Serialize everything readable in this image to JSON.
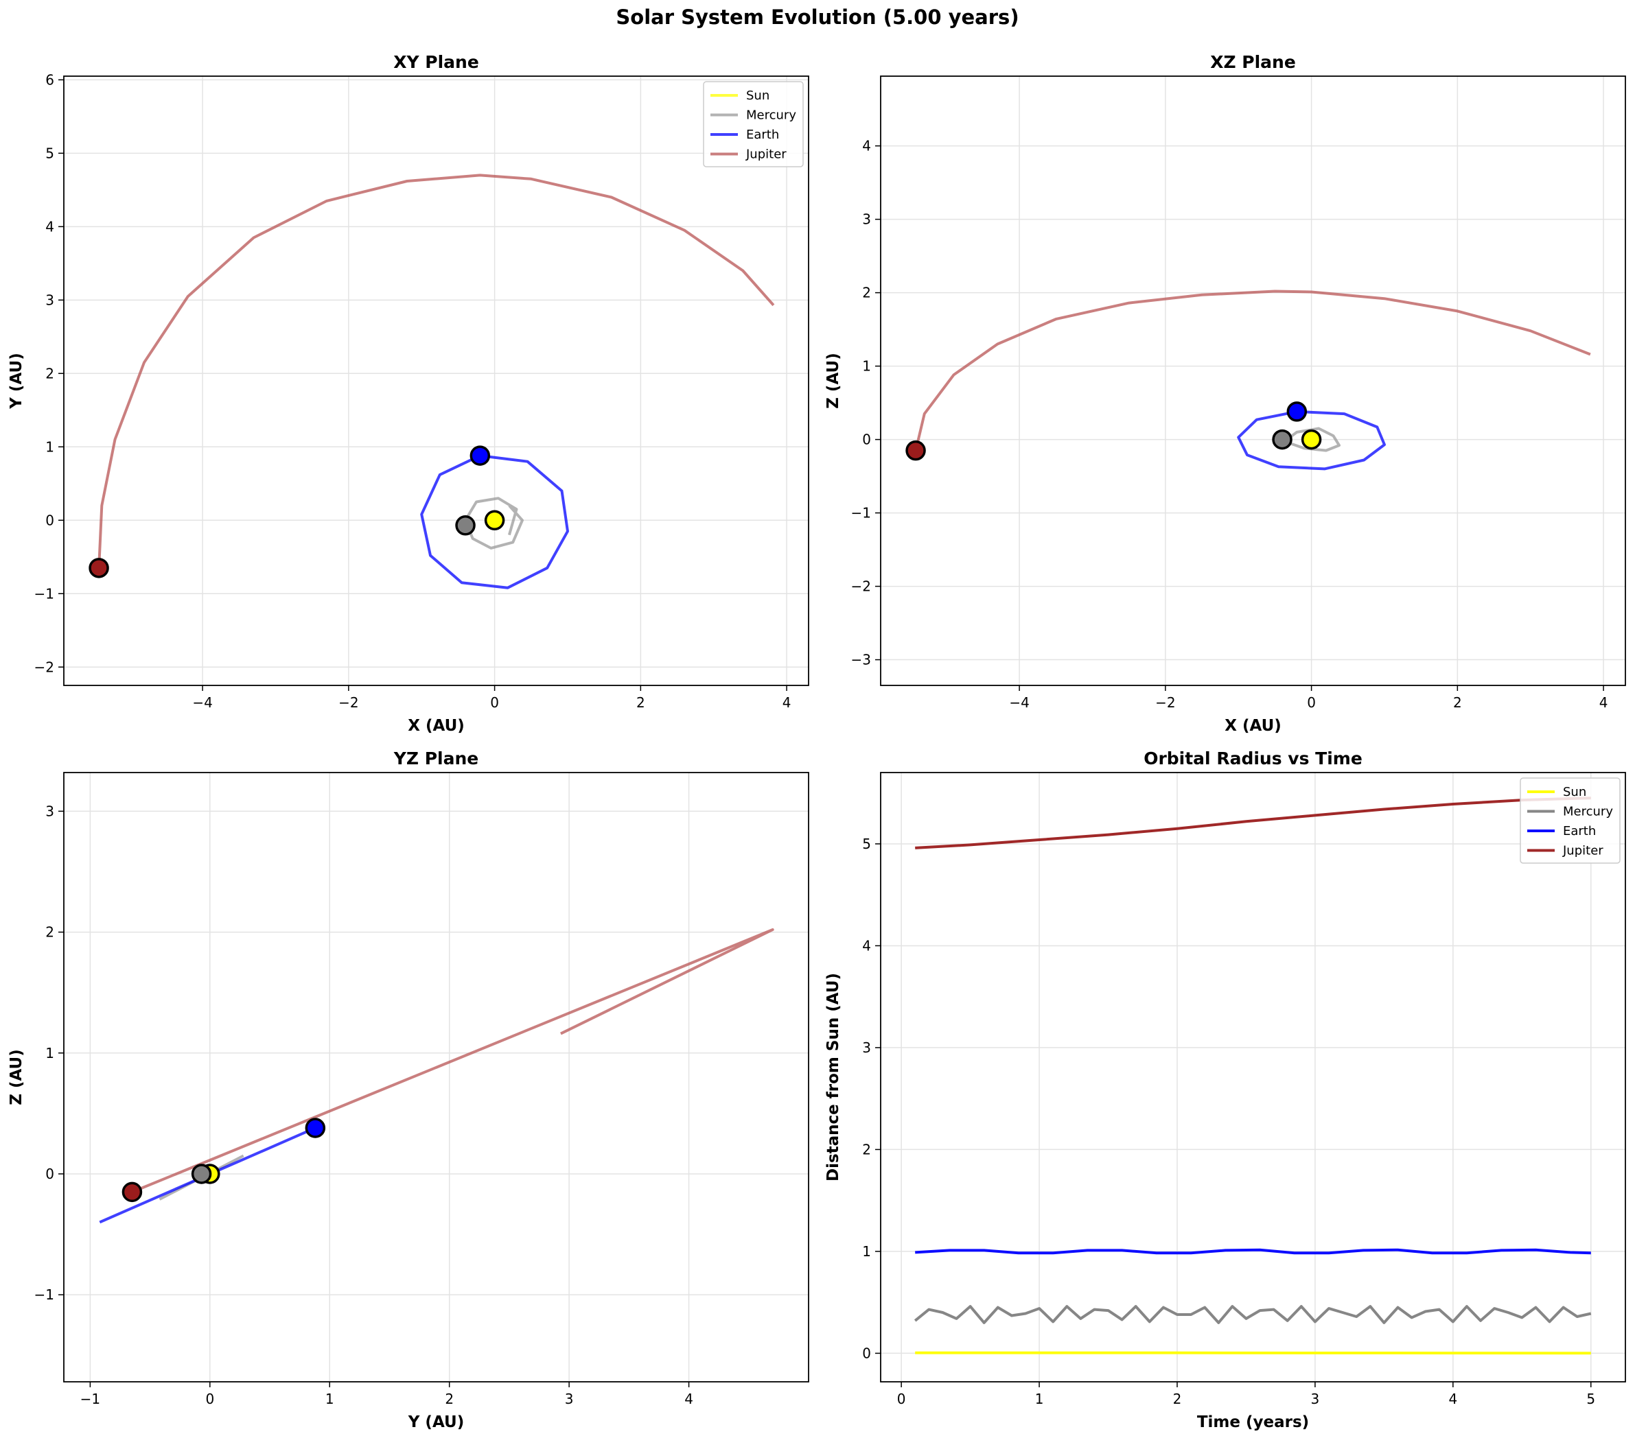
{
  "figure": {
    "title": "Solar System Evolution (5.00 years)"
  },
  "colors": {
    "sun": "#ffff00",
    "mercury": "#808080",
    "earth": "#0000ff",
    "jupiter": "#9b1c1c"
  },
  "chart_data": [
    {
      "id": "xy",
      "type": "line",
      "title": "XY Plane",
      "xlabel": "X (AU)",
      "ylabel": "Y (AU)",
      "xlim": [
        -5.9,
        4.3
      ],
      "ylim": [
        -2.25,
        6.05
      ],
      "xticks": [
        -4,
        -2,
        0,
        2,
        4
      ],
      "yticks": [
        -2,
        -1,
        0,
        1,
        2,
        3,
        4,
        5,
        6
      ],
      "grid": true,
      "legend": "top-right",
      "legend_entries": [
        "Sun",
        "Mercury",
        "Earth",
        "Jupiter"
      ],
      "series": [
        {
          "name": "Sun",
          "color": "#ffff00",
          "x": [
            0.0,
            0.0
          ],
          "y": [
            0.0,
            0.0
          ]
        },
        {
          "name": "Mercury",
          "color": "#999999",
          "x": [
            0.2,
            0.3,
            0.05,
            -0.25,
            -0.4,
            -0.3,
            -0.05,
            0.25,
            0.38,
            0.2
          ],
          "y": [
            -0.2,
            0.15,
            0.3,
            0.25,
            0.0,
            -0.25,
            -0.38,
            -0.3,
            0.0,
            0.2
          ]
        },
        {
          "name": "Earth",
          "color": "#0000ff",
          "x": [
            -0.2,
            0.45,
            0.92,
            1.0,
            0.72,
            0.18,
            -0.45,
            -0.88,
            -1.0,
            -0.75,
            -0.2
          ],
          "y": [
            0.88,
            0.8,
            0.4,
            -0.15,
            -0.65,
            -0.92,
            -0.85,
            -0.48,
            0.08,
            0.62,
            0.88
          ]
        },
        {
          "name": "Jupiter",
          "color": "#b85454",
          "x": [
            3.82,
            3.4,
            2.6,
            1.6,
            0.5,
            -0.2,
            -1.2,
            -2.3,
            -3.3,
            -4.2,
            -4.8,
            -5.2,
            -5.38,
            -5.42
          ],
          "y": [
            2.93,
            3.4,
            3.95,
            4.4,
            4.65,
            4.7,
            4.62,
            4.35,
            3.85,
            3.05,
            2.15,
            1.1,
            0.2,
            -0.65
          ]
        }
      ],
      "markers": [
        {
          "name": "Sun",
          "x": 0.0,
          "y": 0.0,
          "color": "#ffff00"
        },
        {
          "name": "Mercury",
          "x": -0.4,
          "y": -0.07,
          "color": "#808080"
        },
        {
          "name": "Earth",
          "x": -0.2,
          "y": 0.88,
          "color": "#0000ff"
        },
        {
          "name": "Jupiter",
          "x": -5.42,
          "y": -0.65,
          "color": "#9b1c1c"
        }
      ]
    },
    {
      "id": "xz",
      "type": "line",
      "title": "XZ Plane",
      "xlabel": "X (AU)",
      "ylabel": "Z (AU)",
      "xlim": [
        -5.9,
        4.3
      ],
      "ylim": [
        -3.35,
        4.95
      ],
      "xticks": [
        -4,
        -2,
        0,
        2,
        4
      ],
      "yticks": [
        -3,
        -2,
        -1,
        0,
        1,
        2,
        3,
        4
      ],
      "grid": true,
      "series": [
        {
          "name": "Sun",
          "color": "#ffff00",
          "x": [
            0.0,
            0.0
          ],
          "y": [
            0.0,
            0.0
          ]
        },
        {
          "name": "Mercury",
          "color": "#999999",
          "x": [
            -0.4,
            -0.2,
            0.1,
            0.3,
            0.38,
            0.2,
            -0.1,
            -0.3,
            -0.4
          ],
          "y": [
            -0.05,
            0.1,
            0.15,
            0.05,
            -0.08,
            -0.15,
            -0.12,
            -0.05,
            -0.05
          ]
        },
        {
          "name": "Earth",
          "color": "#0000ff",
          "x": [
            -0.2,
            0.45,
            0.9,
            1.0,
            0.72,
            0.18,
            -0.45,
            -0.88,
            -1.0,
            -0.75,
            -0.2
          ],
          "y": [
            0.38,
            0.35,
            0.17,
            -0.07,
            -0.28,
            -0.4,
            -0.37,
            -0.21,
            0.03,
            0.27,
            0.38
          ]
        },
        {
          "name": "Jupiter",
          "color": "#b85454",
          "x": [
            3.82,
            3.0,
            2.0,
            1.0,
            0.0,
            -0.5,
            -1.5,
            -2.5,
            -3.5,
            -4.3,
            -4.9,
            -5.3,
            -5.42
          ],
          "y": [
            1.16,
            1.48,
            1.75,
            1.92,
            2.01,
            2.02,
            1.97,
            1.86,
            1.64,
            1.3,
            0.88,
            0.35,
            -0.15
          ]
        }
      ],
      "markers": [
        {
          "name": "Sun",
          "x": 0.0,
          "y": 0.0,
          "color": "#ffff00"
        },
        {
          "name": "Mercury",
          "x": -0.4,
          "y": 0.0,
          "color": "#808080"
        },
        {
          "name": "Earth",
          "x": -0.2,
          "y": 0.38,
          "color": "#0000ff"
        },
        {
          "name": "Jupiter",
          "x": -5.42,
          "y": -0.15,
          "color": "#9b1c1c"
        }
      ]
    },
    {
      "id": "yz",
      "type": "line",
      "title": "YZ Plane",
      "xlabel": "Y (AU)",
      "ylabel": "Z (AU)",
      "xlim": [
        -1.22,
        5.0
      ],
      "ylim": [
        -1.72,
        3.32
      ],
      "xticks": [
        -1,
        0,
        1,
        2,
        3,
        4
      ],
      "yticks": [
        -1,
        0,
        1,
        2,
        3
      ],
      "grid": true,
      "series": [
        {
          "name": "Sun",
          "color": "#ffff00",
          "x": [
            0.0,
            0.0
          ],
          "y": [
            0.0,
            0.0
          ]
        },
        {
          "name": "Mercury",
          "color": "#999999",
          "x": [
            -0.42,
            0.28
          ],
          "y": [
            -0.21,
            0.15
          ]
        },
        {
          "name": "Earth",
          "color": "#0000ff",
          "x": [
            -0.92,
            0.88
          ],
          "y": [
            -0.4,
            0.38
          ]
        },
        {
          "name": "Jupiter",
          "color": "#b85454",
          "x": [
            -0.65,
            4.7,
            2.93
          ],
          "y": [
            -0.15,
            2.02,
            1.16
          ]
        }
      ],
      "markers": [
        {
          "name": "Sun",
          "x": 0.0,
          "y": 0.0,
          "color": "#ffff00"
        },
        {
          "name": "Mercury",
          "x": -0.07,
          "y": 0.0,
          "color": "#808080"
        },
        {
          "name": "Earth",
          "x": 0.88,
          "y": 0.38,
          "color": "#0000ff"
        },
        {
          "name": "Jupiter",
          "x": -0.65,
          "y": -0.15,
          "color": "#9b1c1c"
        }
      ]
    },
    {
      "id": "radius",
      "type": "line",
      "title": "Orbital Radius vs Time",
      "xlabel": "Time (years)",
      "ylabel": "Distance from Sun (AU)",
      "xlim": [
        -0.15,
        5.25
      ],
      "ylim": [
        -0.28,
        5.7
      ],
      "xticks": [
        0,
        1,
        2,
        3,
        4,
        5
      ],
      "yticks": [
        0,
        1,
        2,
        3,
        4,
        5
      ],
      "grid": true,
      "legend": "top-right",
      "legend_entries": [
        "Sun",
        "Mercury",
        "Earth",
        "Jupiter"
      ],
      "series": [
        {
          "name": "Sun",
          "color": "#ffff00",
          "x": [
            0.1,
            1.0,
            2.0,
            3.0,
            4.0,
            5.0
          ],
          "y": [
            0.005,
            0.005,
            0.004,
            0.003,
            0.002,
            0.001
          ]
        },
        {
          "name": "Mercury",
          "color": "#808080",
          "x": [
            0.1,
            0.2,
            0.3,
            0.4,
            0.5,
            0.6,
            0.7,
            0.8,
            0.9,
            1.0,
            1.1,
            1.2,
            1.3,
            1.4,
            1.5,
            1.6,
            1.7,
            1.8,
            1.9,
            2.0,
            2.1,
            2.2,
            2.3,
            2.4,
            2.5,
            2.6,
            2.7,
            2.8,
            2.9,
            3.0,
            3.1,
            3.2,
            3.3,
            3.4,
            3.5,
            3.6,
            3.7,
            3.8,
            3.9,
            4.0,
            4.1,
            4.2,
            4.3,
            4.4,
            4.5,
            4.6,
            4.7,
            4.8,
            4.9,
            5.0
          ],
          "y": [
            0.32,
            0.43,
            0.4,
            0.34,
            0.46,
            0.3,
            0.45,
            0.37,
            0.39,
            0.44,
            0.31,
            0.46,
            0.34,
            0.43,
            0.42,
            0.33,
            0.46,
            0.31,
            0.45,
            0.38,
            0.38,
            0.45,
            0.3,
            0.46,
            0.34,
            0.42,
            0.43,
            0.32,
            0.46,
            0.31,
            0.44,
            0.4,
            0.36,
            0.46,
            0.3,
            0.45,
            0.35,
            0.41,
            0.43,
            0.31,
            0.46,
            0.32,
            0.44,
            0.4,
            0.35,
            0.45,
            0.31,
            0.45,
            0.36,
            0.39
          ]
        },
        {
          "name": "Earth",
          "color": "#0000ff",
          "x": [
            0.1,
            0.35,
            0.6,
            0.85,
            1.1,
            1.35,
            1.6,
            1.85,
            2.1,
            2.35,
            2.6,
            2.85,
            3.1,
            3.35,
            3.6,
            3.85,
            4.1,
            4.35,
            4.6,
            4.85,
            5.0
          ],
          "y": [
            0.99,
            1.01,
            1.01,
            0.985,
            0.985,
            1.01,
            1.01,
            0.985,
            0.985,
            1.01,
            1.015,
            0.985,
            0.985,
            1.01,
            1.015,
            0.985,
            0.985,
            1.01,
            1.015,
            0.99,
            0.985
          ]
        },
        {
          "name": "Jupiter",
          "color": "#9b1c1c",
          "x": [
            0.1,
            0.5,
            1.0,
            1.5,
            2.0,
            2.5,
            3.0,
            3.5,
            4.0,
            4.5,
            5.0
          ],
          "y": [
            4.96,
            4.99,
            5.04,
            5.09,
            5.15,
            5.22,
            5.28,
            5.34,
            5.39,
            5.43,
            5.45
          ]
        }
      ]
    }
  ]
}
